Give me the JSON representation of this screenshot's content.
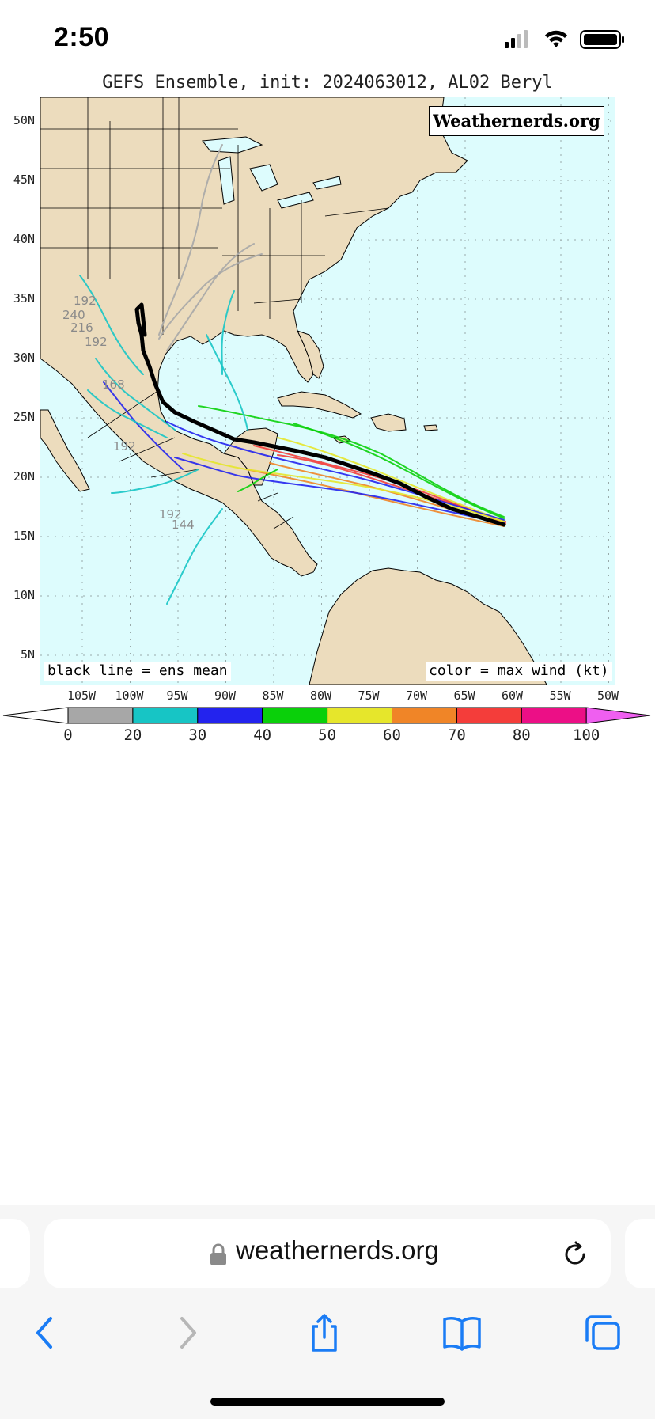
{
  "status_bar": {
    "time": "2:50"
  },
  "map": {
    "title": "GEFS Ensemble, init: 2024063012, AL02 Beryl",
    "watermark": "Weathernerds.org",
    "latitude_labels": [
      "50N",
      "45N",
      "40N",
      "35N",
      "30N",
      "25N",
      "20N",
      "15N",
      "10N",
      "5N"
    ],
    "longitude_labels": [
      "105W",
      "100W",
      "95W",
      "90W",
      "85W",
      "80W",
      "75W",
      "70W",
      "65W",
      "60W",
      "55W",
      "50W"
    ],
    "note_left": "black line = ens mean",
    "note_right": "color = max wind (kt)",
    "colorbar": {
      "ticks": [
        "0",
        "20",
        "30",
        "40",
        "50",
        "60",
        "70",
        "80",
        "100"
      ],
      "colors": [
        "#a7a7a7",
        "#17c5c5",
        "#2323ee",
        "#0ad00a",
        "#e6e62b",
        "#f08527",
        "#f43d3a",
        "#ec0f86",
        "#ef5ff0"
      ],
      "under_color": "#ffffff"
    },
    "hour_labels": [
      "192",
      "240",
      "216",
      "192",
      "168",
      "192",
      "192",
      "144"
    ],
    "mean_track_color": "#000000",
    "land_color": "#ecdcbd",
    "ocean_color": "#ddfcfd"
  },
  "browser": {
    "url": "weathernerds.org"
  }
}
